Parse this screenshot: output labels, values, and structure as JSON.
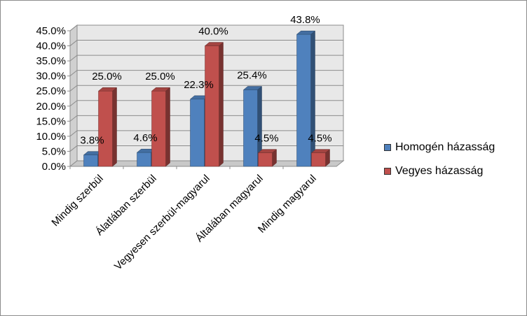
{
  "chart_data": {
    "type": "bar",
    "categories": [
      "Mindig szerbül",
      "Álatlában szerbül",
      "Vegyesen szerbül-magyarul",
      "Általában magyarul",
      "Mindig magyarul"
    ],
    "series": [
      {
        "name": "Homogén házasság",
        "values": [
          3.8,
          4.6,
          22.3,
          25.4,
          43.8
        ],
        "labels": [
          "3.8%",
          "4.6%",
          "22.3%",
          "25.4%",
          "43.8%"
        ],
        "color": "#4F81BD"
      },
      {
        "name": "Vegyes házasság",
        "values": [
          25.0,
          25.0,
          40.0,
          4.5,
          4.5
        ],
        "labels": [
          "25.0%",
          "25.0%",
          "40.0%",
          "4.5%",
          "4.5%"
        ],
        "color": "#C0504D"
      }
    ],
    "ylim": [
      0,
      45
    ],
    "yticks": [
      "0.0%",
      "5.0%",
      "10.0%",
      "15.0%",
      "20.0%",
      "25.0%",
      "30.0%",
      "35.0%",
      "40.0%",
      "45.0%"
    ],
    "grid": true,
    "legend": "right",
    "title": "",
    "xlabel": "",
    "ylabel": ""
  }
}
